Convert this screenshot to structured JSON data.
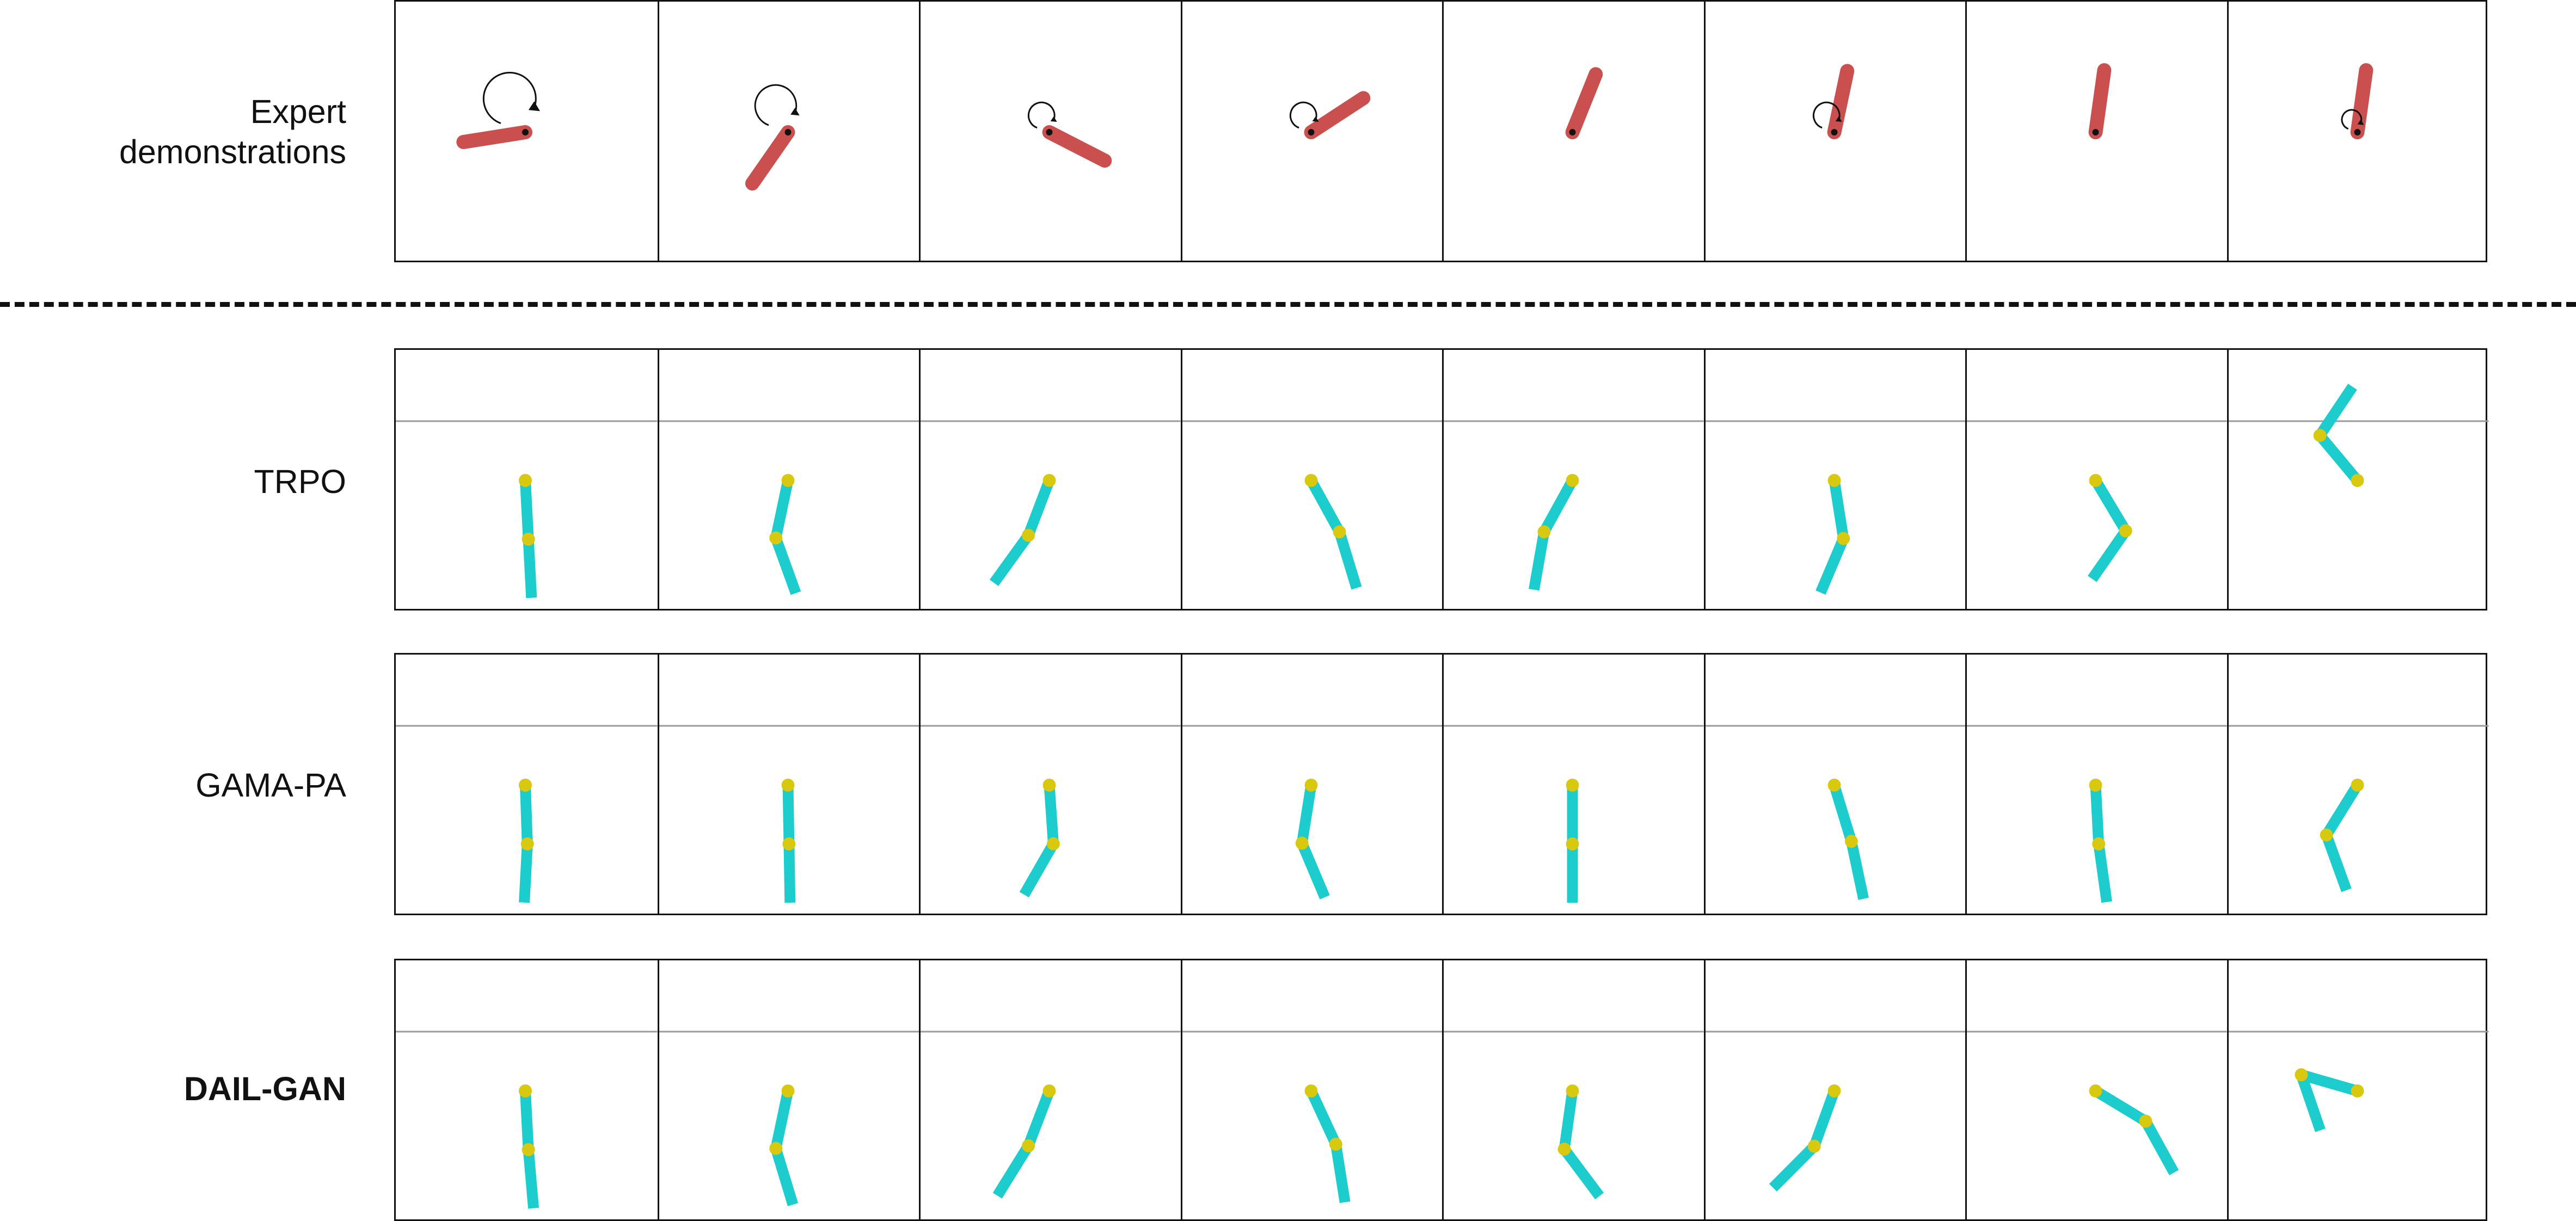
{
  "rows": [
    {
      "label_lines": [
        "Expert",
        "demonstrations"
      ],
      "bold": false,
      "kind": "pendulum",
      "colors": {
        "rod": "#C9504F",
        "pivot": "#111111",
        "arrow": "#111111"
      },
      "frames": [
        {
          "angle_deg": -99,
          "rotation_arrow": "large"
        },
        {
          "angle_deg": -145,
          "rotation_arrow": "medium"
        },
        {
          "angle_deg": 117,
          "rotation_arrow": "small"
        },
        {
          "angle_deg": 57,
          "rotation_arrow": "small"
        },
        {
          "angle_deg": 22,
          "rotation_arrow": "none"
        },
        {
          "angle_deg": 12,
          "rotation_arrow": "small"
        },
        {
          "angle_deg": 8,
          "rotation_arrow": "none"
        },
        {
          "angle_deg": 8,
          "rotation_arrow": "tiny"
        }
      ]
    },
    {
      "label_lines": [
        "TRPO"
      ],
      "bold": false,
      "kind": "acrobot",
      "colors": {
        "link": "#1DCCCC",
        "joint": "#D8C80E",
        "target_line": "#9A9A9A"
      },
      "frames": [
        {
          "link1_deg": 3,
          "link2_deg": 3
        },
        {
          "link1_deg": -12,
          "link2_deg": 20
        },
        {
          "link1_deg": -21,
          "link2_deg": -36
        },
        {
          "link1_deg": 29,
          "link2_deg": 17
        },
        {
          "link1_deg": -29,
          "link2_deg": -10
        },
        {
          "link1_deg": 9,
          "link2_deg": -23
        },
        {
          "link1_deg": 31,
          "link2_deg": -35
        },
        {
          "link1_deg": -140,
          "link2_deg": 146
        }
      ]
    },
    {
      "label_lines": [
        "GAMA-PA"
      ],
      "bold": false,
      "kind": "acrobot",
      "colors": {
        "link": "#1DCCCC",
        "joint": "#D8C80E",
        "target_line": "#9A9A9A"
      },
      "frames": [
        {
          "link1_deg": 2,
          "link2_deg": -3
        },
        {
          "link1_deg": 1,
          "link2_deg": 1
        },
        {
          "link1_deg": 4,
          "link2_deg": -30
        },
        {
          "link1_deg": -9,
          "link2_deg": 23
        },
        {
          "link1_deg": 0,
          "link2_deg": 0
        },
        {
          "link1_deg": 17,
          "link2_deg": 12
        },
        {
          "link1_deg": 3,
          "link2_deg": 8
        },
        {
          "link1_deg": -32,
          "link2_deg": 20
        }
      ]
    },
    {
      "label_lines": [
        "DAIL-GAN"
      ],
      "bold": true,
      "kind": "acrobot",
      "colors": {
        "link": "#1DCCCC",
        "joint": "#D8C80E",
        "target_line": "#9A9A9A"
      },
      "frames": [
        {
          "link1_deg": 3,
          "link2_deg": 5
        },
        {
          "link1_deg": -12,
          "link2_deg": 17
        },
        {
          "link1_deg": -21,
          "link2_deg": -32
        },
        {
          "link1_deg": 25,
          "link2_deg": 9
        },
        {
          "link1_deg": -8,
          "link2_deg": 37
        },
        {
          "link1_deg": -20,
          "link2_deg": -45
        },
        {
          "link1_deg": 59,
          "link2_deg": 29
        },
        {
          "link1_deg": -106,
          "link2_deg": 19
        }
      ]
    }
  ]
}
